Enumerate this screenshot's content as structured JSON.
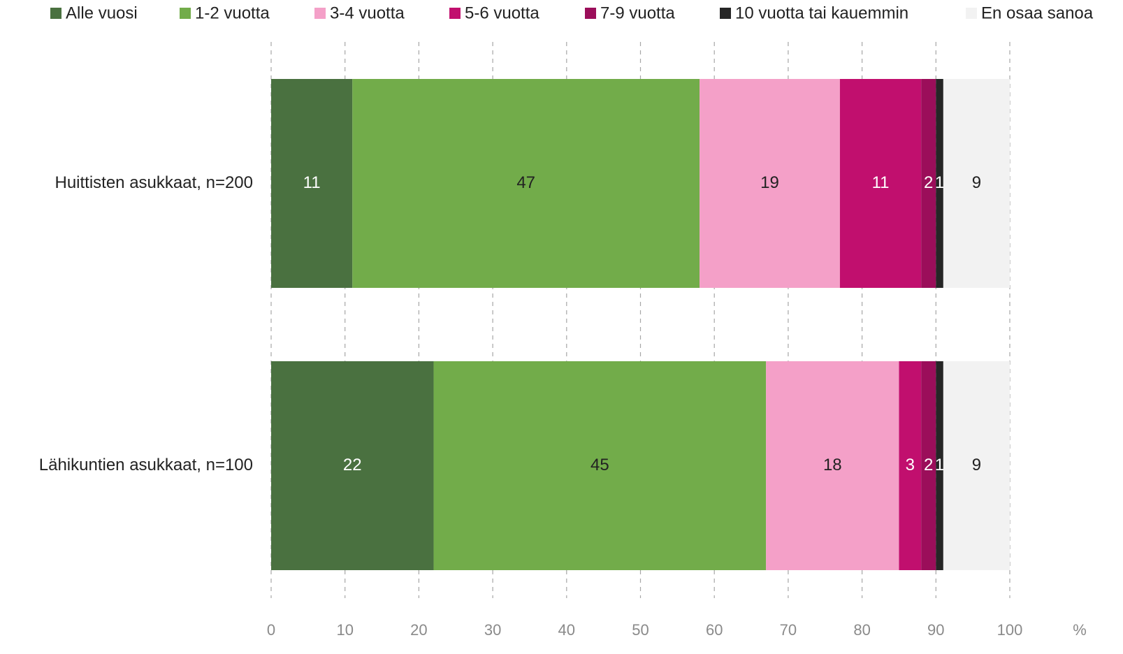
{
  "chart_data": {
    "type": "stacked_barh",
    "categories": [
      "Huittisten asukkaat, n=200",
      "Lähikuntien asukkaat, n=100"
    ],
    "series": [
      {
        "name": "Alle vuosi",
        "color": "#4a7140",
        "label_color": "#ffffff",
        "values": [
          11,
          22
        ]
      },
      {
        "name": "1-2 vuotta",
        "color": "#72ac4a",
        "label_color": "#222222",
        "values": [
          47,
          45
        ]
      },
      {
        "name": "3-4 vuotta",
        "color": "#f4a0c8",
        "label_color": "#222222",
        "values": [
          19,
          18
        ]
      },
      {
        "name": "5-6 vuotta",
        "color": "#c10f6e",
        "label_color": "#ffffff",
        "values": [
          11,
          3
        ]
      },
      {
        "name": "7-9 vuotta",
        "color": "#9b0e5a",
        "label_color": "#ffffff",
        "values": [
          2,
          2
        ]
      },
      {
        "name": "10 vuotta tai kauemmin",
        "color": "#262626",
        "label_color": "#ffffff",
        "values": [
          1,
          1
        ]
      },
      {
        "name": "En osaa sanoa",
        "color": "#f2f2f2",
        "label_color": "#222222",
        "values": [
          9,
          9
        ]
      }
    ],
    "xlabel": "%",
    "xlim": [
      0,
      100
    ],
    "xticks": [
      0,
      10,
      20,
      30,
      40,
      50,
      60,
      70,
      80,
      90,
      100
    ],
    "grid": true,
    "legend": "top"
  }
}
